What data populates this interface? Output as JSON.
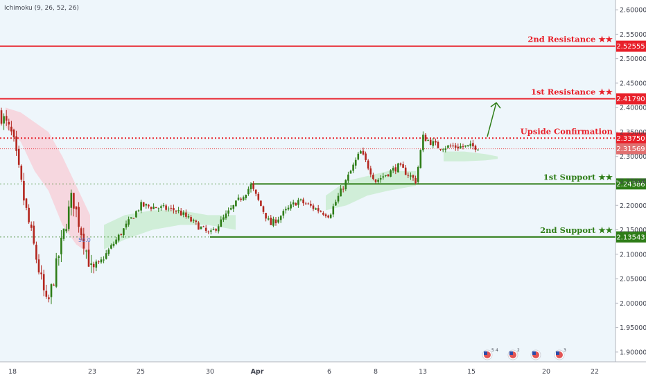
{
  "indicator_label": "Ichimoku (9, 26, 52, 26)",
  "fib_label": "50.0",
  "colors": {
    "background": "#eef6fb",
    "resistance": "#e8202a",
    "support": "#2e7d17",
    "candle_up": "#2e7d17",
    "candle_down": "#b3261e",
    "current_price": "#e8202a",
    "cloud_bull": "#c8ecd0",
    "cloud_bear": "#f8d0d8",
    "arrow": "#2e7d17"
  },
  "levels": [
    {
      "name": "2nd Resistance ★★",
      "price": 2.52555,
      "price_label": "2.52555",
      "style": "solid",
      "kind": "resistance"
    },
    {
      "name": "1st Resistance ★★",
      "price": 2.4179,
      "price_label": "2.41790",
      "style": "solid",
      "kind": "resistance"
    },
    {
      "name": "Upside Confirmation",
      "price": 2.3375,
      "price_label": "2.33750",
      "style": "dotted",
      "kind": "resistance"
    },
    {
      "name": "1st Support ★★",
      "price": 2.24386,
      "price_label": "2.24386",
      "style": "solid",
      "kind": "support"
    },
    {
      "name": "2nd Support ★★",
      "price": 2.13543,
      "price_label": "2.13543",
      "style": "solid",
      "kind": "support"
    }
  ],
  "current_price": {
    "price": 2.31569,
    "label": "2.31569"
  },
  "event_icons": [
    {
      "name": "us-flag-icon",
      "badge": "5",
      "badge2": "4"
    },
    {
      "name": "us-flag-icon",
      "badge": "2",
      "badge2": ""
    },
    {
      "name": "us-flag-icon",
      "badge": "",
      "badge2": ""
    },
    {
      "name": "us-flag-icon",
      "badge": "3",
      "badge2": ""
    }
  ],
  "chart_data": {
    "type": "candlestick",
    "title": "",
    "xlabel": "",
    "ylabel": "",
    "ylim": [
      1.88,
      2.62
    ],
    "y_ticks": [
      "2.60000",
      "2.55000",
      "2.50000",
      "2.45000",
      "2.40000",
      "2.35000",
      "2.30000",
      "2.25000",
      "2.20000",
      "2.15000",
      "2.10000",
      "2.05000",
      "2.00000",
      "1.95000",
      "1.90000"
    ],
    "x_ticks": [
      "18",
      "23",
      "25",
      "30",
      "Apr",
      "6",
      "8",
      "13",
      "15",
      "20",
      "22"
    ],
    "grid": false,
    "price_path": [
      {
        "t": "Mar 17",
        "close": 2.39
      },
      {
        "t": "Mar 18",
        "close": 2.34
      },
      {
        "t": "Mar 19",
        "close": 2.2
      },
      {
        "t": "Mar 20",
        "close": 1.99
      },
      {
        "t": "Mar 22",
        "close": 2.22
      },
      {
        "t": "Mar 23",
        "close": 2.06
      },
      {
        "t": "Mar 25",
        "close": 2.2
      },
      {
        "t": "Mar 27",
        "close": 2.19
      },
      {
        "t": "Mar 30",
        "close": 2.14
      },
      {
        "t": "Apr 1",
        "close": 2.24
      },
      {
        "t": "Apr 3",
        "close": 2.16
      },
      {
        "t": "Apr 5",
        "close": 2.21
      },
      {
        "t": "Apr 6",
        "close": 2.18
      },
      {
        "t": "Apr 7",
        "close": 2.31
      },
      {
        "t": "Apr 8",
        "close": 2.25
      },
      {
        "t": "Apr 10",
        "close": 2.28
      },
      {
        "t": "Apr 12",
        "close": 2.25
      },
      {
        "t": "Apr 13",
        "close": 2.34
      },
      {
        "t": "Apr 14",
        "close": 2.32
      },
      {
        "t": "Apr 15",
        "close": 2.32
      }
    ],
    "projection": {
      "from": 2.3375,
      "to": 2.41,
      "direction": "up"
    }
  }
}
